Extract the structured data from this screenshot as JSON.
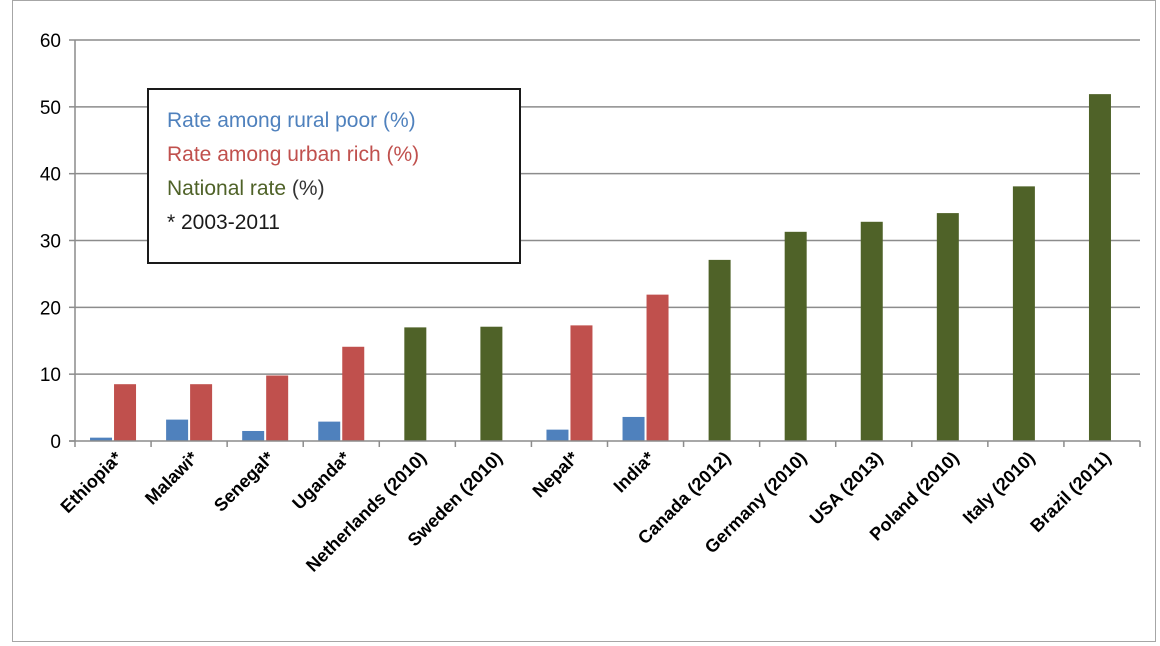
{
  "chart_data": {
    "type": "bar",
    "categories": [
      "Ethiopia*",
      "Malawi*",
      "Senegal*",
      "Uganda*",
      "Netherlands (2010)",
      "Sweden (2010)",
      "Nepal*",
      "India*",
      "Canada (2012)",
      "Germany (2010)",
      "USA (2013)",
      "Poland (2010)",
      "Italy (2010)",
      "Brazil (2011)"
    ],
    "series": [
      {
        "name": "Rate among rural poor (%)",
        "color": "#4f81bd",
        "values": [
          0.5,
          3.2,
          1.5,
          2.9,
          null,
          null,
          1.7,
          3.6,
          null,
          null,
          null,
          null,
          null,
          null
        ]
      },
      {
        "name": "Rate among urban rich (%)",
        "color": "#c0504d",
        "values": [
          8.5,
          8.5,
          9.8,
          14.1,
          null,
          null,
          17.3,
          21.9,
          null,
          null,
          null,
          null,
          null,
          null
        ]
      },
      {
        "name": "National rate (%)",
        "color": "#4f6228",
        "values": [
          null,
          null,
          null,
          null,
          17,
          17.1,
          null,
          null,
          27.1,
          31.3,
          32.8,
          34.1,
          38.1,
          51.9
        ]
      }
    ],
    "ylim": [
      0,
      60
    ],
    "yticks": [
      0,
      10,
      20,
      30,
      40,
      50,
      60
    ],
    "grid": true,
    "legend_position": "top-left"
  },
  "legend": {
    "rural_label": "Rate among rural poor ",
    "rural_pct": "(%)",
    "urban_label": "Rate among urban rich ",
    "urban_pct": "(%)",
    "national_label": "National rate ",
    "national_pct": "(%)",
    "note": "* 2003-2011"
  }
}
